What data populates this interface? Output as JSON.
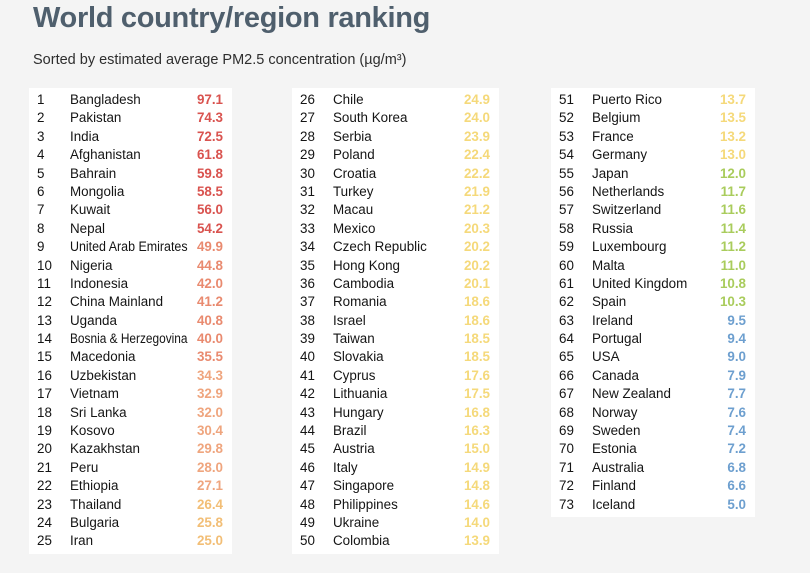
{
  "chart_data": {
    "type": "table",
    "title": "World country/region ranking",
    "subtitle": "Sorted by estimated average PM2.5 concentration (µg/m³)",
    "columns": [
      [
        {
          "rank": "1",
          "name": "Bangladesh",
          "value": "97.1",
          "color": "#d9534f"
        },
        {
          "rank": "2",
          "name": "Pakistan",
          "value": "74.3",
          "color": "#d9534f"
        },
        {
          "rank": "3",
          "name": "India",
          "value": "72.5",
          "color": "#d9534f"
        },
        {
          "rank": "4",
          "name": "Afghanistan",
          "value": "61.8",
          "color": "#d9534f"
        },
        {
          "rank": "5",
          "name": "Bahrain",
          "value": "59.8",
          "color": "#d9534f"
        },
        {
          "rank": "6",
          "name": "Mongolia",
          "value": "58.5",
          "color": "#d9534f"
        },
        {
          "rank": "7",
          "name": "Kuwait",
          "value": "56.0",
          "color": "#d9534f"
        },
        {
          "rank": "8",
          "name": "Nepal",
          "value": "54.2",
          "color": "#d9534f"
        },
        {
          "rank": "9",
          "name": "United Arab Emirates",
          "value": "49.9",
          "color": "#e98a6f"
        },
        {
          "rank": "10",
          "name": "Nigeria",
          "value": "44.8",
          "color": "#e98a6f"
        },
        {
          "rank": "11",
          "name": "Indonesia",
          "value": "42.0",
          "color": "#e98a6f"
        },
        {
          "rank": "12",
          "name": "China Mainland",
          "value": "41.2",
          "color": "#e98a6f"
        },
        {
          "rank": "13",
          "name": "Uganda",
          "value": "40.8",
          "color": "#e98a6f"
        },
        {
          "rank": "14",
          "name": "Bosnia & Herzegovina",
          "value": "40.0",
          "color": "#e98a6f"
        },
        {
          "rank": "15",
          "name": "Macedonia",
          "value": "35.5",
          "color": "#e98a6f"
        },
        {
          "rank": "16",
          "name": "Uzbekistan",
          "value": "34.3",
          "color": "#efa57e"
        },
        {
          "rank": "17",
          "name": "Vietnam",
          "value": "32.9",
          "color": "#efa57e"
        },
        {
          "rank": "18",
          "name": "Sri Lanka",
          "value": "32.0",
          "color": "#efa57e"
        },
        {
          "rank": "19",
          "name": "Kosovo",
          "value": "30.4",
          "color": "#efa57e"
        },
        {
          "rank": "20",
          "name": "Kazakhstan",
          "value": "29.8",
          "color": "#efa57e"
        },
        {
          "rank": "21",
          "name": "Peru",
          "value": "28.0",
          "color": "#efa57e"
        },
        {
          "rank": "22",
          "name": "Ethiopia",
          "value": "27.1",
          "color": "#efa57e"
        },
        {
          "rank": "23",
          "name": "Thailand",
          "value": "26.4",
          "color": "#f2be76"
        },
        {
          "rank": "24",
          "name": "Bulgaria",
          "value": "25.8",
          "color": "#f2be76"
        },
        {
          "rank": "25",
          "name": "Iran",
          "value": "25.0",
          "color": "#f2be76"
        }
      ],
      [
        {
          "rank": "26",
          "name": "Chile",
          "value": "24.9",
          "color": "#f5d97a"
        },
        {
          "rank": "27",
          "name": "South Korea",
          "value": "24.0",
          "color": "#f5d97a"
        },
        {
          "rank": "28",
          "name": "Serbia",
          "value": "23.9",
          "color": "#f5d97a"
        },
        {
          "rank": "29",
          "name": "Poland",
          "value": "22.4",
          "color": "#f5d97a"
        },
        {
          "rank": "30",
          "name": "Croatia",
          "value": "22.2",
          "color": "#f5d97a"
        },
        {
          "rank": "31",
          "name": "Turkey",
          "value": "21.9",
          "color": "#f5d97a"
        },
        {
          "rank": "32",
          "name": "Macau",
          "value": "21.2",
          "color": "#f5d97a"
        },
        {
          "rank": "33",
          "name": "Mexico",
          "value": "20.3",
          "color": "#f5d97a"
        },
        {
          "rank": "34",
          "name": "Czech Republic",
          "value": "20.2",
          "color": "#f5d97a"
        },
        {
          "rank": "35",
          "name": "Hong Kong",
          "value": "20.2",
          "color": "#f5d97a"
        },
        {
          "rank": "36",
          "name": "Cambodia",
          "value": "20.1",
          "color": "#f5d97a"
        },
        {
          "rank": "37",
          "name": "Romania",
          "value": "18.6",
          "color": "#f5d97a"
        },
        {
          "rank": "38",
          "name": "Israel",
          "value": "18.6",
          "color": "#f5d97a"
        },
        {
          "rank": "39",
          "name": "Taiwan",
          "value": "18.5",
          "color": "#f5d97a"
        },
        {
          "rank": "40",
          "name": "Slovakia",
          "value": "18.5",
          "color": "#f5d97a"
        },
        {
          "rank": "41",
          "name": "Cyprus",
          "value": "17.6",
          "color": "#f5d97a"
        },
        {
          "rank": "42",
          "name": "Lithuania",
          "value": "17.5",
          "color": "#f5d97a"
        },
        {
          "rank": "43",
          "name": "Hungary",
          "value": "16.8",
          "color": "#f5d97a"
        },
        {
          "rank": "44",
          "name": "Brazil",
          "value": "16.3",
          "color": "#f5d97a"
        },
        {
          "rank": "45",
          "name": "Austria",
          "value": "15.0",
          "color": "#f5d97a"
        },
        {
          "rank": "46",
          "name": "Italy",
          "value": "14.9",
          "color": "#f5d97a"
        },
        {
          "rank": "47",
          "name": "Singapore",
          "value": "14.8",
          "color": "#f5d97a"
        },
        {
          "rank": "48",
          "name": "Philippines",
          "value": "14.6",
          "color": "#f5d97a"
        },
        {
          "rank": "49",
          "name": "Ukraine",
          "value": "14.0",
          "color": "#f5d97a"
        },
        {
          "rank": "50",
          "name": "Colombia",
          "value": "13.9",
          "color": "#f5d97a"
        }
      ],
      [
        {
          "rank": "51",
          "name": "Puerto Rico",
          "value": "13.7",
          "color": "#f5d97a"
        },
        {
          "rank": "52",
          "name": "Belgium",
          "value": "13.5",
          "color": "#f5d97a"
        },
        {
          "rank": "53",
          "name": "France",
          "value": "13.2",
          "color": "#f5d97a"
        },
        {
          "rank": "54",
          "name": "Germany",
          "value": "13.0",
          "color": "#f5d97a"
        },
        {
          "rank": "55",
          "name": "Japan",
          "value": "12.0",
          "color": "#a9cc5c"
        },
        {
          "rank": "56",
          "name": "Netherlands",
          "value": "11.7",
          "color": "#a9cc5c"
        },
        {
          "rank": "57",
          "name": "Switzerland",
          "value": "11.6",
          "color": "#a9cc5c"
        },
        {
          "rank": "58",
          "name": "Russia",
          "value": "11.4",
          "color": "#a9cc5c"
        },
        {
          "rank": "59",
          "name": "Luxembourg",
          "value": "11.2",
          "color": "#a9cc5c"
        },
        {
          "rank": "60",
          "name": "Malta",
          "value": "11.0",
          "color": "#a9cc5c"
        },
        {
          "rank": "61",
          "name": "United Kingdom",
          "value": "10.8",
          "color": "#a9cc5c"
        },
        {
          "rank": "62",
          "name": "Spain",
          "value": "10.3",
          "color": "#a9cc5c"
        },
        {
          "rank": "63",
          "name": "Ireland",
          "value": "9.5",
          "color": "#6d9fcf"
        },
        {
          "rank": "64",
          "name": "Portugal",
          "value": "9.4",
          "color": "#6d9fcf"
        },
        {
          "rank": "65",
          "name": "USA",
          "value": "9.0",
          "color": "#6d9fcf"
        },
        {
          "rank": "66",
          "name": "Canada",
          "value": "7.9",
          "color": "#6d9fcf"
        },
        {
          "rank": "67",
          "name": "New Zealand",
          "value": "7.7",
          "color": "#6d9fcf"
        },
        {
          "rank": "68",
          "name": "Norway",
          "value": "7.6",
          "color": "#6d9fcf"
        },
        {
          "rank": "69",
          "name": "Sweden",
          "value": "7.4",
          "color": "#6d9fcf"
        },
        {
          "rank": "70",
          "name": "Estonia",
          "value": "7.2",
          "color": "#6d9fcf"
        },
        {
          "rank": "71",
          "name": "Australia",
          "value": "6.8",
          "color": "#6d9fcf"
        },
        {
          "rank": "72",
          "name": "Finland",
          "value": "6.6",
          "color": "#6d9fcf"
        },
        {
          "rank": "73",
          "name": "Iceland",
          "value": "5.0",
          "color": "#6d9fcf"
        }
      ]
    ]
  }
}
